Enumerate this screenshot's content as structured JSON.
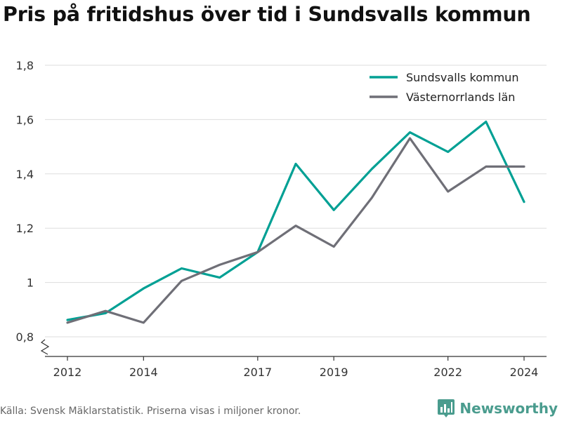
{
  "title": "Pris på fritidshus över tid i Sundsvalls kommun",
  "footer": {
    "source": "Källa: Svensk Mäklarstatistik. Priserna visas i miljoner kronor.",
    "brand": "Newsworthy"
  },
  "colors": {
    "sundsvall": "#00a094",
    "vasternorrland": "#6f6f77",
    "grid": "#dddddd",
    "axis": "#333333",
    "brand": "#4a9c8e"
  },
  "icons": {
    "brand": "bar-chart-logo-icon",
    "axis_break": "axis-break-zigzag-icon"
  },
  "chart_data": {
    "type": "line",
    "title": "Pris på fritidshus över tid i Sundsvalls kommun",
    "xlabel": "",
    "ylabel": "",
    "x": [
      2012,
      2013,
      2014,
      2015,
      2016,
      2017,
      2018,
      2019,
      2020,
      2021,
      2022,
      2023,
      2024
    ],
    "x_ticks": [
      2012,
      2014,
      2017,
      2019,
      2022,
      2024
    ],
    "ylim": [
      0.8,
      1.8
    ],
    "y_ticks": [
      0.8,
      1.0,
      1.2,
      1.4,
      1.6,
      1.8
    ],
    "y_tick_labels": [
      "0,8",
      "1",
      "1,2",
      "1,4",
      "1,6",
      "1,8"
    ],
    "grid": true,
    "axis_break": true,
    "legend_position": "top-right",
    "series": [
      {
        "name": "Sundsvalls kommun",
        "color": "#00a094",
        "values": [
          0.862,
          0.887,
          0.978,
          1.052,
          1.018,
          1.112,
          1.437,
          1.267,
          1.418,
          1.553,
          1.481,
          1.592,
          1.297
        ]
      },
      {
        "name": "Västernorrlands län",
        "color": "#6f6f77",
        "values": [
          0.852,
          0.895,
          0.852,
          1.006,
          1.065,
          1.112,
          1.209,
          1.132,
          1.312,
          1.531,
          1.335,
          1.427,
          1.427
        ]
      }
    ]
  }
}
